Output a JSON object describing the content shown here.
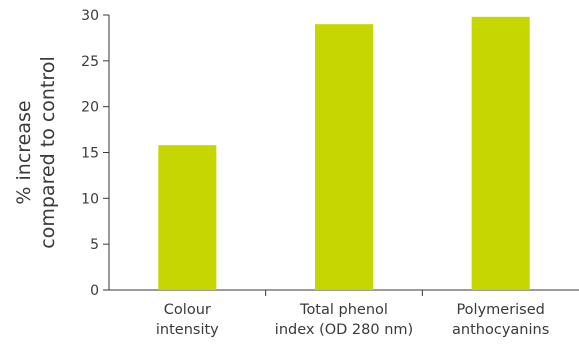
{
  "chart_data": {
    "type": "bar",
    "categories": [
      [
        "Colour",
        "intensity"
      ],
      [
        "Total phenol",
        "index (OD 280 nm)"
      ],
      [
        "Polymerised",
        "anthocyanins"
      ]
    ],
    "values": [
      15.8,
      29.0,
      29.8
    ],
    "ylabel": [
      "% increase",
      "compared to control"
    ],
    "ylim": [
      0,
      30
    ],
    "yticks": [
      0,
      5,
      10,
      15,
      20,
      25,
      30
    ],
    "bar_color": "#c5d600",
    "grid": false
  }
}
